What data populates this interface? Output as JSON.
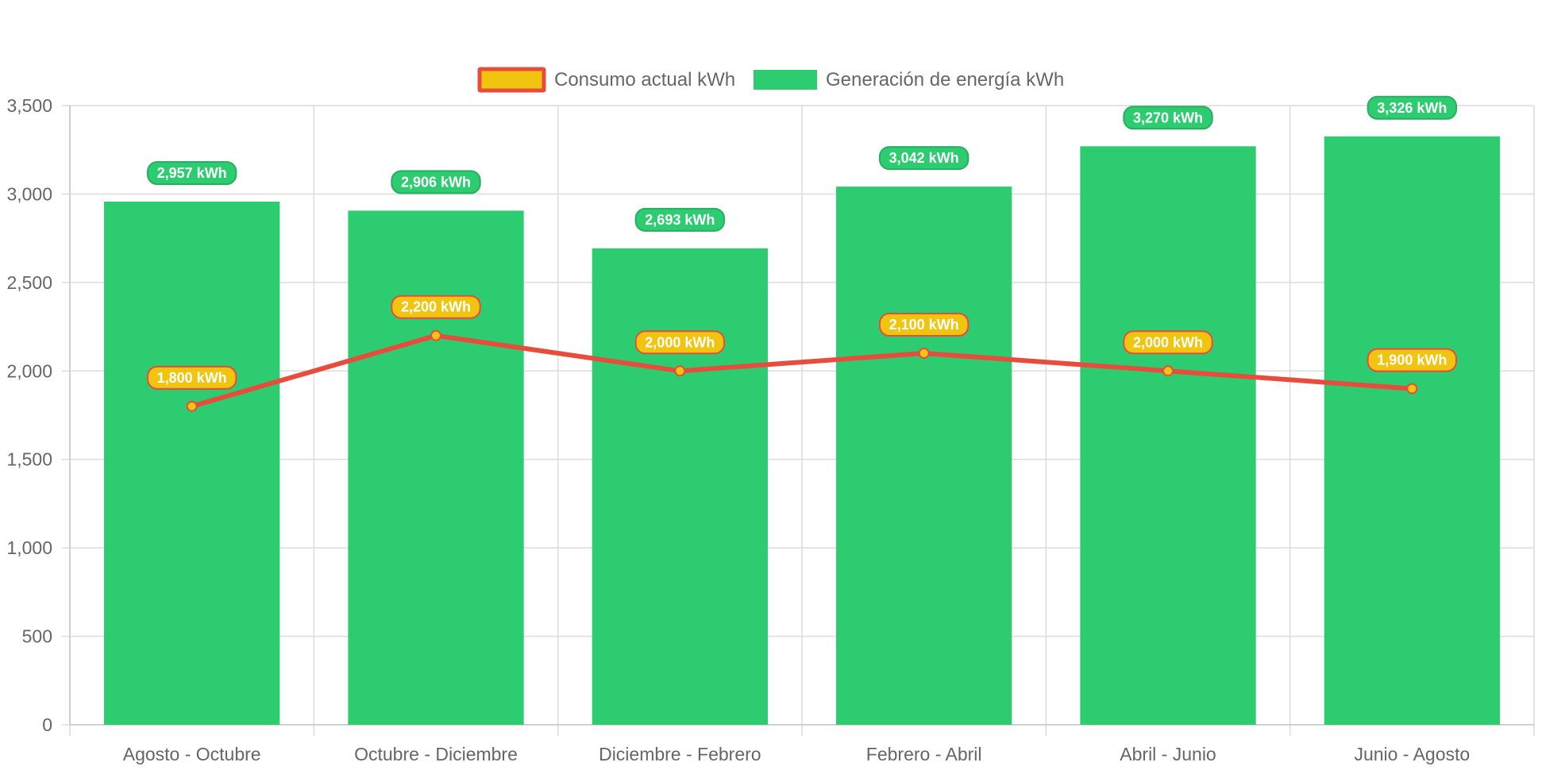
{
  "chart_data": {
    "type": "bar",
    "categories": [
      "Agosto - Octubre",
      "Octubre - Diciembre",
      "Diciembre - Febrero",
      "Febrero - Abril",
      "Abril - Junio",
      "Junio - Agosto"
    ],
    "series": [
      {
        "name": "Consumo actual kWh",
        "type": "line",
        "values": [
          1800,
          2200,
          2000,
          2100,
          2000,
          1900
        ],
        "labels": [
          "1,800 kWh",
          "2,200 kWh",
          "2,000 kWh",
          "2,100 kWh",
          "2,000 kWh",
          "1,900 kWh"
        ],
        "color": "#e74c3c",
        "fill": "#f1c40f"
      },
      {
        "name": "Generación de energía kWh",
        "type": "bar",
        "values": [
          2957,
          2906,
          2693,
          3042,
          3270,
          3326
        ],
        "labels": [
          "2,957 kWh",
          "2,906 kWh",
          "2,693 kWh",
          "3,042 kWh",
          "3,270 kWh",
          "3,326 kWh"
        ],
        "color": "#2ecc71",
        "badge_border": "#27ae60"
      }
    ],
    "ylim": [
      0,
      3500
    ],
    "yticks": [
      0,
      500,
      1000,
      1500,
      2000,
      2500,
      3000,
      3500
    ],
    "ytick_labels": [
      "0",
      "500",
      "1,000",
      "1,500",
      "2,000",
      "2,500",
      "3,000",
      "3,500"
    ],
    "grid": true,
    "legend_position": "top-center",
    "title": "",
    "xlabel": "",
    "ylabel": ""
  }
}
